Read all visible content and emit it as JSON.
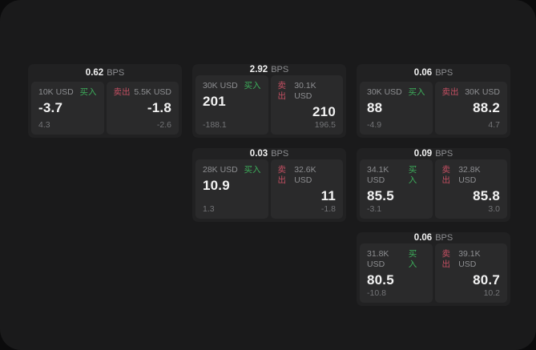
{
  "labels": {
    "bps_suffix": "BPS",
    "buy": "买入",
    "sell": "卖出"
  },
  "colors": {
    "page_bg": "#0b0b0c",
    "container_bg": "#1a1a1b",
    "card_bg": "#212122",
    "panel_bg": "#2a2a2b",
    "text_primary": "#f2f2f2",
    "text_muted": "#8d8e91",
    "text_dim": "#737477",
    "buy_green": "#3dae5b",
    "sell_red": "#c24f62"
  },
  "cards": [
    {
      "bps": "0.62",
      "row": 1,
      "col": 1,
      "buy": {
        "amount": "10K USD",
        "value": "-3.7",
        "delta": "4.3"
      },
      "sell": {
        "amount": "5.5K USD",
        "value": "-1.8",
        "delta": "-2.6"
      }
    },
    {
      "bps": "2.92",
      "row": 1,
      "col": 2,
      "buy": {
        "amount": "30K USD",
        "value": "201",
        "delta": "-188.1"
      },
      "sell": {
        "amount": "30.1K USD",
        "value": "210",
        "delta": "196.5"
      }
    },
    {
      "bps": "0.06",
      "row": 1,
      "col": 3,
      "buy": {
        "amount": "30K USD",
        "value": "88",
        "delta": "-4.9"
      },
      "sell": {
        "amount": "30K USD",
        "value": "88.2",
        "delta": "4.7"
      }
    },
    {
      "bps": "0.03",
      "row": 2,
      "col": 2,
      "buy": {
        "amount": "28K USD",
        "value": "10.9",
        "delta": "1.3"
      },
      "sell": {
        "amount": "32.6K USD",
        "value": "11",
        "delta": "-1.8"
      }
    },
    {
      "bps": "0.09",
      "row": 2,
      "col": 3,
      "buy": {
        "amount": "34.1K USD",
        "value": "85.5",
        "delta": "-3.1"
      },
      "sell": {
        "amount": "32.8K USD",
        "value": "85.8",
        "delta": "3.0"
      }
    },
    {
      "bps": "0.06",
      "row": 3,
      "col": 3,
      "buy": {
        "amount": "31.8K USD",
        "value": "80.5",
        "delta": "-10.8"
      },
      "sell": {
        "amount": "39.1K USD",
        "value": "80.7",
        "delta": "10.2"
      }
    }
  ]
}
